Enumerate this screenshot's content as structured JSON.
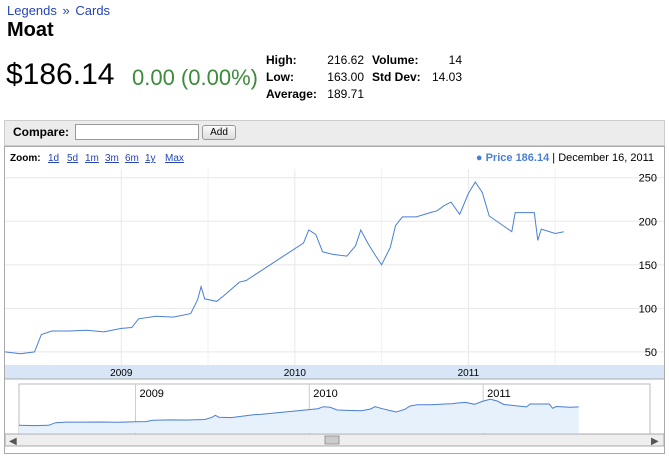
{
  "breadcrumb": {
    "parent": "Legends",
    "separator": "»",
    "current": "Cards"
  },
  "title": "Moat",
  "quote": {
    "price": "$186.14",
    "change": "0.00 (0.00%)"
  },
  "stats": {
    "high_label": "High:",
    "high": "216.62",
    "low_label": "Low:",
    "low": "163.00",
    "average_label": "Average:",
    "average": "189.71",
    "volume_label": "Volume:",
    "volume": "14",
    "stddev_label": "Std Dev:",
    "stddev": "14.03"
  },
  "compare": {
    "label": "Compare:",
    "value": "",
    "button": "Add"
  },
  "zoom": {
    "label": "Zoom:",
    "options": [
      "1d",
      "5d",
      "1m",
      "3m",
      "6m",
      "1y",
      "Max"
    ]
  },
  "legend": {
    "dot": "●",
    "label": "Price",
    "value": "186.14",
    "date": "| December 16, 2011"
  },
  "colors": {
    "line": "#4a7fd6",
    "positive": "#3d8a3d",
    "link": "#2444b8"
  },
  "chart_data": {
    "type": "line",
    "x_labels": [
      "2009",
      "2010",
      "2011"
    ],
    "y_ticks": [
      50,
      100,
      150,
      200,
      250
    ],
    "ylim": [
      35,
      260
    ],
    "xlim": [
      2008.33,
      2011.96
    ],
    "series": [
      {
        "points": [
          [
            2008.33,
            50
          ],
          [
            2008.42,
            48
          ],
          [
            2008.5,
            50
          ],
          [
            2008.54,
            70
          ],
          [
            2008.6,
            74
          ],
          [
            2008.7,
            74
          ],
          [
            2008.8,
            75
          ],
          [
            2008.9,
            73
          ],
          [
            2009.0,
            77
          ],
          [
            2009.06,
            78
          ],
          [
            2009.1,
            88
          ],
          [
            2009.2,
            91
          ],
          [
            2009.3,
            90
          ],
          [
            2009.4,
            94
          ],
          [
            2009.44,
            110
          ],
          [
            2009.46,
            125
          ],
          [
            2009.48,
            111
          ],
          [
            2009.55,
            108
          ],
          [
            2009.6,
            116
          ],
          [
            2009.68,
            130
          ],
          [
            2009.72,
            132
          ],
          [
            2010.05,
            175
          ],
          [
            2010.08,
            190
          ],
          [
            2010.12,
            185
          ],
          [
            2010.16,
            165
          ],
          [
            2010.22,
            162
          ],
          [
            2010.3,
            160
          ],
          [
            2010.35,
            172
          ],
          [
            2010.38,
            190
          ],
          [
            2010.42,
            175
          ],
          [
            2010.46,
            162
          ],
          [
            2010.5,
            150
          ],
          [
            2010.55,
            170
          ],
          [
            2010.58,
            195
          ],
          [
            2010.62,
            205
          ],
          [
            2010.7,
            205
          ],
          [
            2010.78,
            210
          ],
          [
            2010.82,
            212
          ],
          [
            2010.86,
            218
          ],
          [
            2010.9,
            222
          ],
          [
            2010.95,
            208
          ],
          [
            2011.0,
            232
          ],
          [
            2011.04,
            245
          ],
          [
            2011.08,
            233
          ],
          [
            2011.12,
            206
          ],
          [
            2011.2,
            195
          ],
          [
            2011.25,
            188
          ],
          [
            2011.27,
            210
          ],
          [
            2011.38,
            210
          ],
          [
            2011.4,
            178
          ],
          [
            2011.42,
            191
          ],
          [
            2011.5,
            186
          ],
          [
            2011.55,
            188
          ]
        ]
      }
    ]
  }
}
